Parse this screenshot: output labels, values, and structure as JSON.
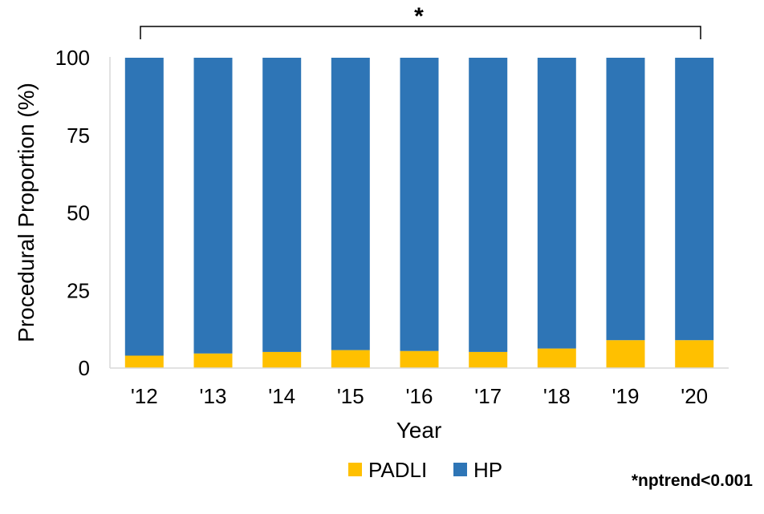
{
  "chart_data": {
    "type": "bar",
    "stacked": true,
    "categories": [
      "'12",
      "'13",
      "'14",
      "'15",
      "'16",
      "'17",
      "'18",
      "'19",
      "'20"
    ],
    "series": [
      {
        "name": "PADLI",
        "color": "#FFC000",
        "values": [
          4,
          4.7,
          5.2,
          5.8,
          5.5,
          5.2,
          6.3,
          9,
          9
        ]
      },
      {
        "name": "HP",
        "color": "#2E75B6",
        "values": [
          96,
          95.3,
          94.8,
          94.2,
          94.5,
          94.8,
          93.7,
          91,
          91
        ]
      }
    ],
    "title": "",
    "xlabel": "Year",
    "ylabel": "Procedural Proportion (%)",
    "ylim": [
      0,
      100
    ],
    "yticks": [
      0,
      25,
      50,
      75,
      100
    ],
    "grid": false,
    "legend_position": "bottom",
    "annotation": {
      "bracket_label": "*",
      "spans": [
        "'12",
        "'20"
      ]
    },
    "footnote": "*nptrend<0.001"
  }
}
